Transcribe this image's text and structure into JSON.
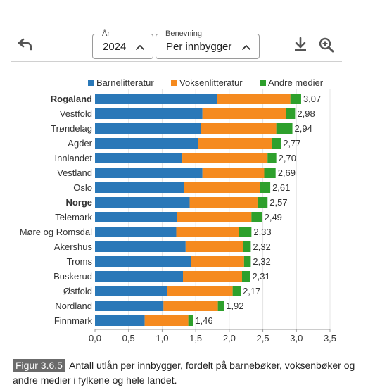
{
  "toolbar": {
    "undo_icon": "undo-icon",
    "year": {
      "legend": "År",
      "value": "2024",
      "icon": "chevron-up-icon"
    },
    "metric": {
      "legend": "Benevning",
      "value": "Per innbygger",
      "icon": "chevron-up-icon"
    },
    "download_icon": "download-icon",
    "zoom_icon": "zoom-in-icon"
  },
  "chart_data": {
    "type": "bar",
    "orientation": "horizontal",
    "stacked": true,
    "categories": [
      "Rogaland",
      "Vestfold",
      "Trøndelag",
      "Agder",
      "Innlandet",
      "Vestland",
      "Oslo",
      "Norge",
      "Telemark",
      "Møre og Romsdal",
      "Akershus",
      "Troms",
      "Buskerud",
      "Østfold",
      "Nordland",
      "Finnmark"
    ],
    "bold_categories": [
      "Rogaland",
      "Norge"
    ],
    "series": [
      {
        "name": "Barnelitteratur",
        "color": "#2a78b8",
        "values": [
          1.82,
          1.6,
          1.58,
          1.53,
          1.3,
          1.6,
          1.33,
          1.41,
          1.22,
          1.21,
          1.35,
          1.43,
          1.31,
          1.07,
          1.02,
          0.74
        ]
      },
      {
        "name": "Voksenlitteratur",
        "color": "#f58a1f",
        "values": [
          1.09,
          1.24,
          1.12,
          1.1,
          1.27,
          0.92,
          1.13,
          1.01,
          1.11,
          0.93,
          0.86,
          0.79,
          0.88,
          0.98,
          0.81,
          0.65
        ]
      },
      {
        "name": "Andre medier",
        "color": "#2ea02c",
        "values": [
          0.16,
          0.14,
          0.24,
          0.14,
          0.13,
          0.17,
          0.15,
          0.15,
          0.16,
          0.19,
          0.11,
          0.1,
          0.12,
          0.12,
          0.09,
          0.07
        ]
      }
    ],
    "totals": [
      "3,07",
      "2,98",
      "2,94",
      "2,77",
      "2,70",
      "2,69",
      "2,61",
      "2,57",
      "2,49",
      "2,33",
      "2,32",
      "2,32",
      "2,31",
      "2,17",
      "1,92",
      "1,46"
    ],
    "xlim": [
      0,
      3.5
    ],
    "xticks": [
      "0,0",
      "0,5",
      "1,0",
      "1,5",
      "2,0",
      "2,5",
      "3,0",
      "3,5"
    ],
    "grid": true,
    "legend_position": "top"
  },
  "caption": {
    "figure_label": "Figur 3.6.5",
    "text": "Antall utlån per innbygger, fordelt på barnebøker, voksenbøker og andre medier i fylkene og hele landet."
  }
}
